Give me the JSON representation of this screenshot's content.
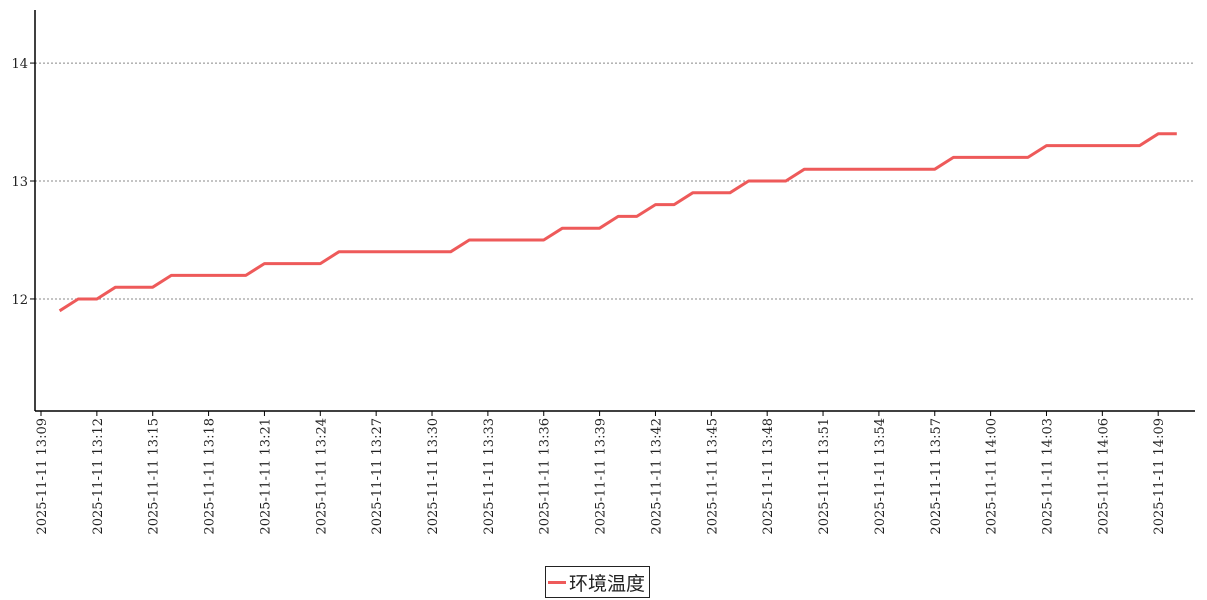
{
  "chart_data": {
    "type": "line",
    "title": "",
    "xlabel": "",
    "ylabel": "",
    "ylim": [
      11.05,
      14.45
    ],
    "y_ticks": [
      12,
      13,
      14
    ],
    "x_tick_labels": [
      "2025-11-11 13:09",
      "2025-11-11 13:12",
      "2025-11-11 13:15",
      "2025-11-11 13:18",
      "2025-11-11 13:21",
      "2025-11-11 13:24",
      "2025-11-11 13:27",
      "2025-11-11 13:30",
      "2025-11-11 13:33",
      "2025-11-11 13:36",
      "2025-11-11 13:39",
      "2025-11-11 13:42",
      "2025-11-11 13:45",
      "2025-11-11 13:48",
      "2025-11-11 13:51",
      "2025-11-11 13:54",
      "2025-11-11 13:57",
      "2025-11-11 14:00",
      "2025-11-11 14:03",
      "2025-11-11 14:06",
      "2025-11-11 14:09"
    ],
    "grid": "horizontal dotted",
    "legend_position": "bottom-center",
    "x": [
      "2025-11-11 13:10",
      "2025-11-11 13:11",
      "2025-11-11 13:12",
      "2025-11-11 13:13",
      "2025-11-11 13:14",
      "2025-11-11 13:15",
      "2025-11-11 13:16",
      "2025-11-11 13:17",
      "2025-11-11 13:18",
      "2025-11-11 13:19",
      "2025-11-11 13:20",
      "2025-11-11 13:21",
      "2025-11-11 13:22",
      "2025-11-11 13:23",
      "2025-11-11 13:24",
      "2025-11-11 13:25",
      "2025-11-11 13:26",
      "2025-11-11 13:27",
      "2025-11-11 13:28",
      "2025-11-11 13:29",
      "2025-11-11 13:30",
      "2025-11-11 13:31",
      "2025-11-11 13:32",
      "2025-11-11 13:33",
      "2025-11-11 13:34",
      "2025-11-11 13:35",
      "2025-11-11 13:36",
      "2025-11-11 13:37",
      "2025-11-11 13:38",
      "2025-11-11 13:39",
      "2025-11-11 13:40",
      "2025-11-11 13:41",
      "2025-11-11 13:42",
      "2025-11-11 13:43",
      "2025-11-11 13:44",
      "2025-11-11 13:45",
      "2025-11-11 13:46",
      "2025-11-11 13:47",
      "2025-11-11 13:48",
      "2025-11-11 13:49",
      "2025-11-11 13:50",
      "2025-11-11 13:51",
      "2025-11-11 13:52",
      "2025-11-11 13:53",
      "2025-11-11 13:54",
      "2025-11-11 13:55",
      "2025-11-11 13:56",
      "2025-11-11 13:57",
      "2025-11-11 13:58",
      "2025-11-11 13:59",
      "2025-11-11 14:00",
      "2025-11-11 14:01",
      "2025-11-11 14:02",
      "2025-11-11 14:03",
      "2025-11-11 14:04",
      "2025-11-11 14:05",
      "2025-11-11 14:06",
      "2025-11-11 14:07",
      "2025-11-11 14:08",
      "2025-11-11 14:09",
      "2025-11-11 14:10"
    ],
    "series": [
      {
        "name": "环境温度",
        "color": "#ee5a5a",
        "values": [
          11.9,
          12.0,
          12.0,
          12.1,
          12.1,
          12.1,
          12.2,
          12.2,
          12.2,
          12.2,
          12.2,
          12.3,
          12.3,
          12.3,
          12.3,
          12.4,
          12.4,
          12.4,
          12.4,
          12.4,
          12.4,
          12.4,
          12.5,
          12.5,
          12.5,
          12.5,
          12.5,
          12.6,
          12.6,
          12.6,
          12.7,
          12.7,
          12.8,
          12.8,
          12.9,
          12.9,
          12.9,
          13.0,
          13.0,
          13.0,
          13.1,
          13.1,
          13.1,
          13.1,
          13.1,
          13.1,
          13.1,
          13.1,
          13.2,
          13.2,
          13.2,
          13.2,
          13.2,
          13.3,
          13.3,
          13.3,
          13.3,
          13.3,
          13.3,
          13.4,
          13.4
        ]
      }
    ]
  }
}
